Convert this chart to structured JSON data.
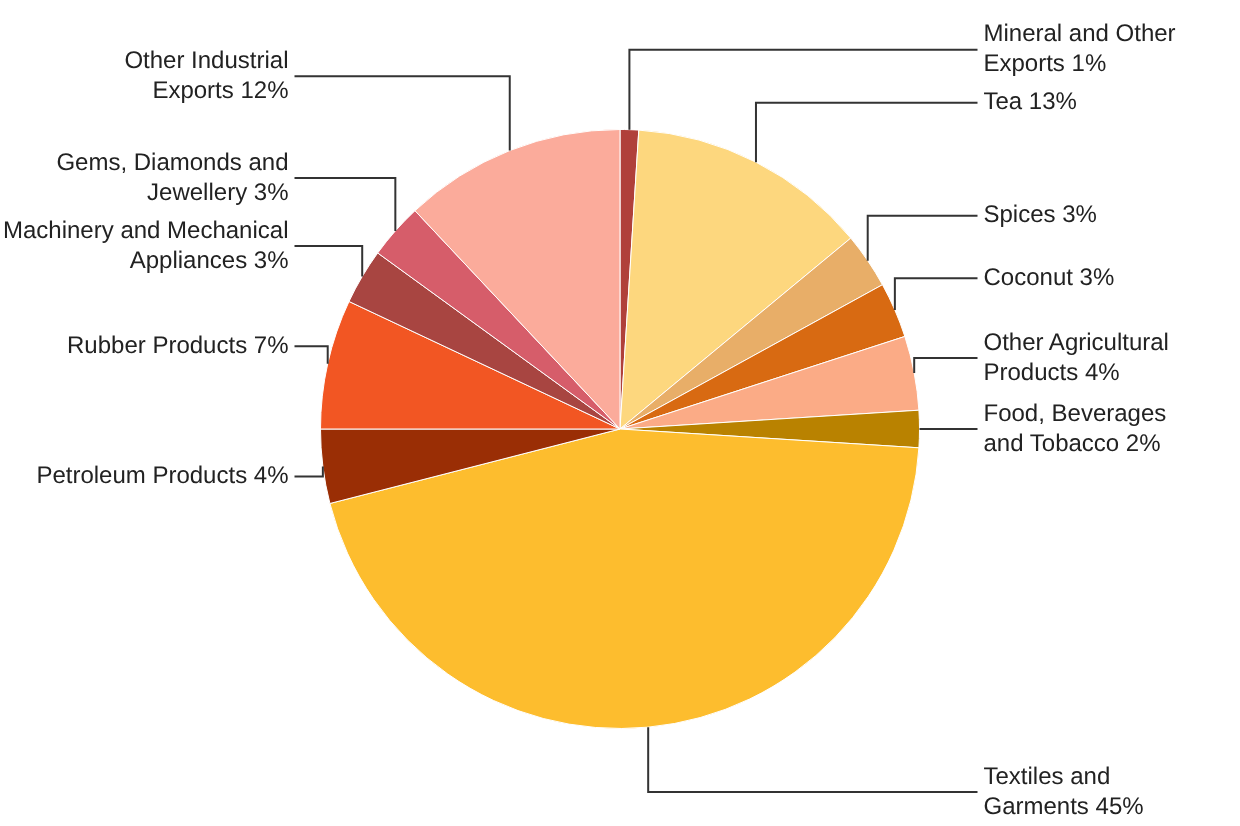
{
  "chart_data": {
    "type": "pie",
    "categories": [
      "Mineral and Other Exports",
      "Tea",
      "Spices",
      "Coconut",
      "Other Agricultural Products",
      "Food, Beverages and Tobacco",
      "Textiles and Garments",
      "Petroleum Products",
      "Rubber Products",
      "Machinery and Mechanical Appliances",
      "Gems, Diamonds and Jewellery",
      "Other Industrial Exports"
    ],
    "values": [
      1,
      13,
      3,
      3,
      4,
      2,
      45,
      4,
      7,
      3,
      3,
      12
    ],
    "value_labels": [
      "1%",
      "13%",
      "3%",
      "3%",
      "4%",
      "2%",
      "45%",
      "4%",
      "7%",
      "3%",
      "3%",
      "12%"
    ],
    "colors": [
      "#b0403a",
      "#fdd77e",
      "#e8ae68",
      "#d86a12",
      "#fbab86",
      "#b98200",
      "#fdbd2e",
      "#9a2e05",
      "#f25623",
      "#a84541",
      "#d65d6a",
      "#fbab9b"
    ],
    "legend": false
  }
}
